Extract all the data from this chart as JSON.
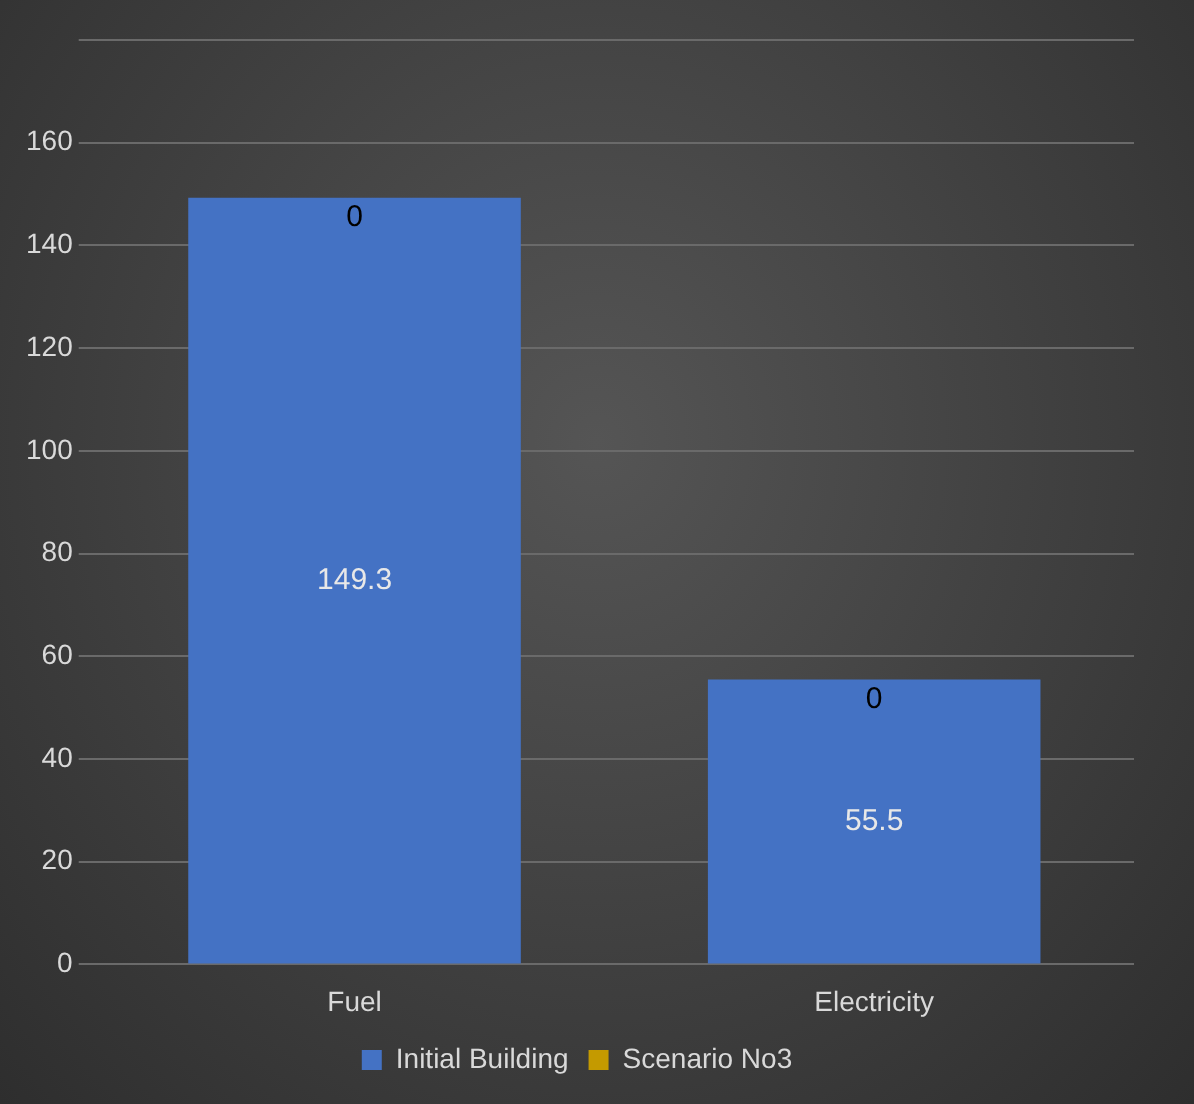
{
  "chart_data": {
    "type": "bar",
    "stacked": true,
    "categories": [
      "Fuel",
      "Electricity"
    ],
    "series": [
      {
        "name": "Initial Building",
        "color": "#4472c4",
        "values": [
          149.3,
          55.5
        ]
      },
      {
        "name": "Scenario No3",
        "color": "#c49a00",
        "values": [
          0,
          0
        ]
      }
    ],
    "ylim": [
      0,
      180
    ],
    "yticks": [
      0,
      20,
      40,
      60,
      80,
      100,
      120,
      140,
      160,
      {
        "value": 180,
        "label": null
      }
    ],
    "grid": "y",
    "legend": "bottom",
    "data_labels": true
  }
}
